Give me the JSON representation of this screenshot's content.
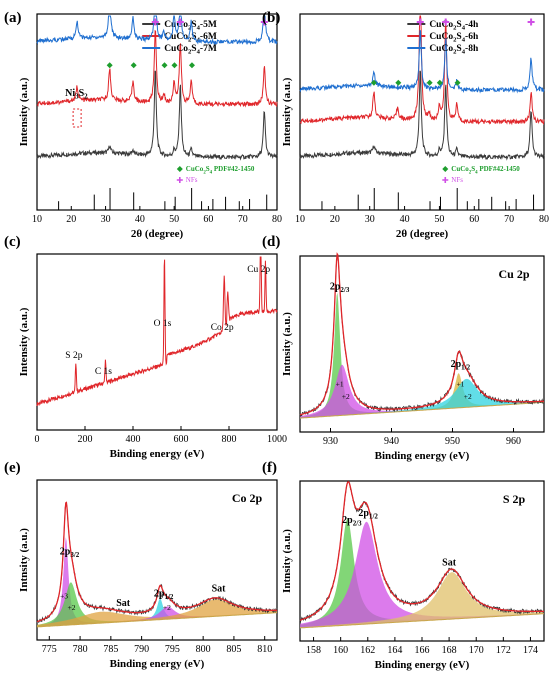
{
  "figure": {
    "panel_labels": [
      "(a)",
      "(b)",
      "(c)",
      "(d)",
      "(e)",
      "(f)"
    ]
  },
  "chart_data": [
    {
      "panel": "(a)",
      "type": "line",
      "xlabel": "2θ (degree)",
      "ylabel": "Intensity (a.u.)",
      "xlim": [
        10,
        80
      ],
      "xticks": [
        "10",
        "20",
        "30",
        "40",
        "50",
        "60",
        "70",
        "80"
      ],
      "legend_position": "top-right",
      "series": [
        {
          "name": "CuCo2S4-5M",
          "legend": [
            "CuCo",
            "2",
            "S",
            "4",
            "-5M"
          ],
          "color": "#3a3a3a",
          "offset": 0,
          "peaks": [
            [
              31.2,
              5
            ],
            [
              38,
              3
            ],
            [
              44.5,
              60
            ],
            [
              50,
              4
            ],
            [
              51.8,
              50
            ],
            [
              55,
              5
            ],
            [
              76.3,
              32
            ]
          ]
        },
        {
          "name": "CuCo2S4-6M",
          "legend": [
            "CuCo",
            "2",
            "S",
            "4",
            "-6M"
          ],
          "color": "#e0262a",
          "offset": 33,
          "peaks": [
            [
              21.7,
              10
            ],
            [
              31.2,
              22
            ],
            [
              38,
              14
            ],
            [
              44.5,
              52
            ],
            [
              47,
              6
            ],
            [
              50,
              15
            ],
            [
              51.8,
              42
            ],
            [
              55,
              16
            ],
            [
              76.3,
              26
            ]
          ]
        },
        {
          "name": "CuCo2S4-7M",
          "legend": [
            "CuCo",
            "2",
            "S",
            "4",
            "-7M"
          ],
          "color": "#1f6fd0",
          "offset": 72,
          "peaks": [
            [
              21.7,
              12
            ],
            [
              31.2,
              30
            ],
            [
              38,
              16
            ],
            [
              44.5,
              38
            ],
            [
              47,
              6
            ],
            [
              50,
              18
            ],
            [
              51.8,
              30
            ],
            [
              55,
              14
            ],
            [
              76.3,
              26
            ]
          ]
        }
      ],
      "annotations": [
        {
          "label": [
            "Ni",
            "3",
            "S",
            "2"
          ],
          "x": 21.7
        }
      ],
      "markers": {
        "diamond": [
          31.2,
          38.2,
          47.2,
          50.1,
          55.2
        ],
        "star": [
          44.5,
          51.8,
          76.3
        ]
      },
      "reference": {
        "label": [
          "CuCo",
          "2",
          "S",
          "4",
          " PDF#42-1450"
        ],
        "nf_label": "NFs",
        "sticks": [
          [
            16.3,
            4
          ],
          [
            26.7,
            7
          ],
          [
            31.3,
            10
          ],
          [
            38.2,
            8
          ],
          [
            47.3,
            4
          ],
          [
            50.3,
            6
          ],
          [
            55.1,
            10
          ],
          [
            58,
            4
          ],
          [
            61.3,
            5
          ],
          [
            65,
            6
          ],
          [
            69,
            4
          ],
          [
            72,
            5
          ],
          [
            77,
            7
          ]
        ]
      }
    },
    {
      "panel": "(b)",
      "type": "line",
      "xlabel": "2θ (degree)",
      "ylabel": "Intensity (a.u.)",
      "xlim": [
        10,
        80
      ],
      "xticks": [
        "10",
        "20",
        "30",
        "40",
        "50",
        "60",
        "70",
        "80"
      ],
      "legend_position": "top-right",
      "series": [
        {
          "name": "CuCo2S4-4h",
          "legend": [
            "CuCo",
            "2",
            "S",
            "4",
            "-4h"
          ],
          "color": "#3a3a3a",
          "offset": 0,
          "peaks": [
            [
              31.2,
              5
            ],
            [
              44.5,
              60
            ],
            [
              50,
              4
            ],
            [
              51.8,
              50
            ],
            [
              55,
              5
            ],
            [
              76.3,
              32
            ]
          ]
        },
        {
          "name": "CuCo2S4-6h",
          "legend": [
            "CuCo",
            "2",
            "S",
            "4",
            "-6h"
          ],
          "color": "#e0262a",
          "offset": 22,
          "peaks": [
            [
              31.2,
              18
            ],
            [
              38,
              8
            ],
            [
              44.5,
              95
            ],
            [
              47,
              5
            ],
            [
              50,
              10
            ],
            [
              51.8,
              70
            ],
            [
              55,
              12
            ],
            [
              76.3,
              20
            ]
          ]
        },
        {
          "name": "CuCo2S4-8h",
          "legend": [
            "CuCo",
            "2",
            "S",
            "4",
            "-8h"
          ],
          "color": "#1f6fd0",
          "offset": 42,
          "peaks": [
            [
              31.2,
              10
            ],
            [
              44.5,
              42
            ],
            [
              51.8,
              35
            ],
            [
              55,
              6
            ],
            [
              76.3,
              22
            ]
          ]
        }
      ],
      "markers": {
        "diamond": [
          31.2,
          38.2,
          47.2,
          50.1,
          55.2
        ],
        "star": [
          44.5,
          51.8,
          76.3
        ]
      },
      "reference": {
        "label": [
          "CuCo",
          "2",
          "S",
          "4",
          " PDF#42-1450"
        ],
        "nf_label": "NFs",
        "sticks": [
          [
            16.3,
            4
          ],
          [
            26.7,
            7
          ],
          [
            31.3,
            10
          ],
          [
            38.2,
            8
          ],
          [
            47.3,
            4
          ],
          [
            50.3,
            6
          ],
          [
            55.1,
            10
          ],
          [
            58,
            4
          ],
          [
            61.3,
            5
          ],
          [
            65,
            6
          ],
          [
            69,
            4
          ],
          [
            72,
            5
          ],
          [
            77,
            7
          ]
        ]
      }
    },
    {
      "panel": "(c)",
      "type": "line",
      "xlabel": "Binding energy (eV)",
      "ylabel": "Intensity (a.u.)",
      "xlim": [
        0,
        1000
      ],
      "xticks": [
        "0",
        "200",
        "400",
        "600",
        "800",
        "1000"
      ],
      "color": "#e0262a",
      "peak_labels": [
        {
          "label": "S 2p",
          "x": 162
        },
        {
          "label": "C 1s",
          "x": 285
        },
        {
          "label": "O 1s",
          "x": 531
        },
        {
          "label": "Co 2p",
          "x": 780
        },
        {
          "label": "Cu 2p",
          "x": 932
        }
      ]
    },
    {
      "panel": "(d)",
      "type": "area",
      "title": "Cu 2p",
      "xlabel": "Binding energy (eV)",
      "ylabel": "Intnsity (a.u.)",
      "xlim": [
        925,
        965
      ],
      "xticks": [
        "930",
        "940",
        "950",
        "960"
      ],
      "peak_labels": [
        {
          "main": "2p",
          "sub": "2/3",
          "x": 931.2
        },
        {
          "main": "2p",
          "sub": "1/2",
          "x": 951
        }
      ],
      "satellite_labels": [
        {
          "label": "+1",
          "x": 931.5
        },
        {
          "label": "+2",
          "x": 932.5
        },
        {
          "label": "+1",
          "x": 951.3
        },
        {
          "label": "+2",
          "x": 952.5
        }
      ],
      "components": [
        {
          "center": 931.1,
          "width": 0.6,
          "height": 0.78,
          "color": "#58c84a"
        },
        {
          "center": 931.9,
          "width": 1.4,
          "height": 0.32,
          "color": "#d04fe6"
        },
        {
          "center": 951.0,
          "width": 0.8,
          "height": 0.22,
          "color": "#d9b23a"
        },
        {
          "center": 952.3,
          "width": 2.2,
          "height": 0.18,
          "color": "#2ed3e0"
        }
      ]
    },
    {
      "panel": "(e)",
      "type": "area",
      "title": "Co 2p",
      "xlabel": "Binding energy (eV)",
      "ylabel": "Intnsity (a.u.)",
      "xlim": [
        773,
        812
      ],
      "xticks": [
        "775",
        "780",
        "785",
        "790",
        "795",
        "800",
        "805",
        "810"
      ],
      "peak_labels": [
        {
          "main": "2p",
          "sub": "3/2",
          "x": 778
        },
        {
          "main": "2p",
          "sub": "1/2",
          "x": 793.3
        }
      ],
      "satellite_labels": [
        {
          "label": "+3",
          "x": 777.4
        },
        {
          "label": "+2",
          "x": 778.6
        },
        {
          "label": "+3",
          "x": 792.8
        },
        {
          "label": "+2",
          "x": 794.1
        }
      ],
      "text_labels": [
        {
          "label": "Sat",
          "x": 787
        },
        {
          "label": "Sat",
          "x": 802.5
        }
      ],
      "components": [
        {
          "center": 777.7,
          "width": 0.5,
          "height": 0.62,
          "color": "#d04fe6"
        },
        {
          "center": 778.5,
          "width": 1.2,
          "height": 0.3,
          "color": "#58c84a"
        },
        {
          "center": 783.5,
          "width": 5.0,
          "height": 0.08,
          "color": "#e0a340"
        },
        {
          "center": 793.0,
          "width": 0.6,
          "height": 0.15,
          "color": "#2ed3e0"
        },
        {
          "center": 794.2,
          "width": 1.5,
          "height": 0.09,
          "color": "#d04fe6"
        },
        {
          "center": 802.0,
          "width": 3.5,
          "height": 0.12,
          "color": "#e0a340"
        }
      ]
    },
    {
      "panel": "(f)",
      "type": "area",
      "title": "S 2p",
      "xlabel": "Binding energy (eV)",
      "ylabel": "Intnsity (a.u.)",
      "xlim": [
        157,
        175
      ],
      "xticks": [
        "158",
        "160",
        "162",
        "164",
        "166",
        "168",
        "170",
        "172",
        "174"
      ],
      "peak_labels": [
        {
          "main": "2p",
          "sub": "2/3",
          "x": 160.7
        },
        {
          "main": "2p",
          "sub": "1/2",
          "x": 161.9
        }
      ],
      "text_labels": [
        {
          "label": "Sat",
          "x": 168
        }
      ],
      "components": [
        {
          "center": 160.5,
          "width": 0.6,
          "height": 0.75,
          "color": "#58c84a"
        },
        {
          "center": 161.9,
          "width": 1.0,
          "height": 0.72,
          "color": "#d04fe6"
        },
        {
          "center": 168.2,
          "width": 1.3,
          "height": 0.33,
          "color": "#e0c06a"
        }
      ]
    }
  ]
}
